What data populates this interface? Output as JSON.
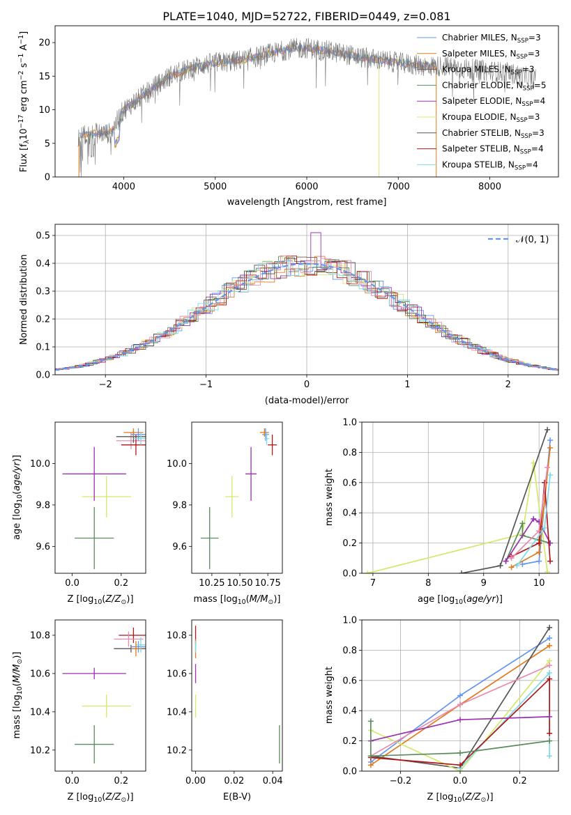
{
  "title": "PLATE=1040, MJD=52722, FIBERID=0449, z=0.081",
  "colors": {
    "Chabrier MILES": "#6495ed",
    "Salpeter MILES": "#e07b1a",
    "Kroupa MILES": "#7a5a3c",
    "Chabrier ELODIE": "#5a8a5a",
    "Salpeter ELODIE": "#9b30b0",
    "Kroupa ELODIE": "#d4e86a",
    "Chabrier STELIB": "#555555",
    "Salpeter STELIB": "#b01515",
    "Kroupa STELIB": "#7fd8e8",
    "pink": "#e88ab0"
  },
  "chart_data": [
    {
      "type": "line",
      "title": "PLATE=1040, MJD=52722, FIBERID=0449, z=0.081",
      "xlabel": "wavelength [Angstrom, rest frame]",
      "ylabel": "Flux [f_λ10^-17 erg cm^-2 s^-1 A^-1]",
      "xlim": [
        3250,
        8750
      ],
      "ylim": [
        0,
        22.5
      ],
      "xticks": [
        "4000",
        "5000",
        "6000",
        "7000",
        "8000"
      ],
      "yticks": [
        "0",
        "5",
        "10",
        "15",
        "20"
      ],
      "legend_position": "top-right",
      "legend": [
        {
          "base": "Chabrier MILES, N",
          "sub": "SSP",
          "tail": "=3"
        },
        {
          "base": "Salpeter MILES, N",
          "sub": "SSP",
          "tail": "=3"
        },
        {
          "base": "Kroupa MILES, N",
          "sub": "SSP",
          "tail": "=3"
        },
        {
          "base": "Chabrier ELODIE, N",
          "sub": "SSP",
          "tail": "=5"
        },
        {
          "base": "Salpeter ELODIE, N",
          "sub": "SSP",
          "tail": "=4"
        },
        {
          "base": "Kroupa ELODIE, N",
          "sub": "SSP",
          "tail": "=3"
        },
        {
          "base": "Chabrier STELIB, N",
          "sub": "SSP",
          "tail": "=3"
        },
        {
          "base": "Salpeter STELIB, N",
          "sub": "SSP",
          "tail": "=4"
        },
        {
          "base": "Kroupa STELIB, N",
          "sub": "SSP",
          "tail": "=4"
        }
      ],
      "continuum": [
        [
          3500,
          6
        ],
        [
          3700,
          6.5
        ],
        [
          3850,
          6.5
        ],
        [
          4000,
          10
        ],
        [
          4200,
          12
        ],
        [
          4500,
          15
        ],
        [
          4800,
          16.5
        ],
        [
          5000,
          17
        ],
        [
          5200,
          17.2
        ],
        [
          5500,
          18
        ],
        [
          5800,
          19
        ],
        [
          6000,
          19.2
        ],
        [
          6300,
          18.6
        ],
        [
          6600,
          17.8
        ],
        [
          7000,
          17
        ],
        [
          7300,
          16.5
        ],
        [
          7500,
          16.5
        ],
        [
          7800,
          16
        ],
        [
          8200,
          15.5
        ],
        [
          8500,
          14.5
        ]
      ]
    },
    {
      "type": "bar",
      "xlabel": "(data-model)/error",
      "ylabel": "Normed distribution",
      "xlim": [
        -2.5,
        2.5
      ],
      "ylim": [
        0,
        0.54
      ],
      "xticks": [
        "−2",
        "−1",
        "0",
        "1",
        "2"
      ],
      "yticks": [
        "0.0",
        "0.1",
        "0.2",
        "0.3",
        "0.4",
        "0.5"
      ],
      "legend_position": "top-right",
      "legend": "𝒩(0, 1)",
      "grid": true
    },
    {
      "type": "scatter",
      "xlabel": "Z [log10(Z/Z⊙)]",
      "ylabel": "age [log10(age/yr)]",
      "xlim": [
        -0.07,
        0.3
      ],
      "ylim": [
        9.47,
        10.2
      ],
      "xticks": [
        "0.0",
        "0.2"
      ],
      "yticks": [
        "9.6",
        "9.8",
        "10.0"
      ],
      "points": [
        {
          "model": "Chabrier ELODIE",
          "x": 0.09,
          "y": 9.64,
          "xerr": 0.08,
          "yerr": 0.15
        },
        {
          "model": "Kroupa ELODIE",
          "x": 0.14,
          "y": 9.84,
          "xerr": 0.1,
          "yerr": 0.1
        },
        {
          "model": "Salpeter ELODIE",
          "x": 0.09,
          "y": 9.95,
          "xerr": 0.13,
          "yerr": 0.13
        },
        {
          "model": "pink",
          "x": 0.24,
          "y": 10.11,
          "xerr": 0.06,
          "yerr": 0.04
        },
        {
          "model": "Salpeter STELIB",
          "x": 0.26,
          "y": 10.09,
          "xerr": 0.06,
          "yerr": 0.05
        },
        {
          "model": "Chabrier STELIB",
          "x": 0.25,
          "y": 10.13,
          "xerr": 0.07,
          "yerr": 0.03
        },
        {
          "model": "Salpeter MILES",
          "x": 0.25,
          "y": 10.15,
          "xerr": 0.04,
          "yerr": 0.02
        },
        {
          "model": "Chabrier MILES",
          "x": 0.27,
          "y": 10.14,
          "xerr": 0.03,
          "yerr": 0.03
        },
        {
          "model": "Kroupa STELIB",
          "x": 0.28,
          "y": 10.12,
          "xerr": 0.03,
          "yerr": 0.03
        }
      ]
    },
    {
      "type": "scatter",
      "xlabel": "mass [log10(M/M⊙)]",
      "ylabel": "",
      "xlim": [
        10.07,
        10.88
      ],
      "ylim": [
        9.47,
        10.2
      ],
      "xticks": [
        "10.25",
        "10.50",
        "10.75"
      ],
      "yticks": [
        "9.6",
        "9.8",
        "10.0"
      ],
      "points": [
        {
          "model": "Chabrier ELODIE",
          "x": 10.23,
          "y": 9.64,
          "xerr": 0.08,
          "yerr": 0.15
        },
        {
          "model": "Kroupa ELODIE",
          "x": 10.43,
          "y": 9.84,
          "xerr": 0.06,
          "yerr": 0.1
        },
        {
          "model": "Salpeter ELODIE",
          "x": 10.6,
          "y": 9.95,
          "xerr": 0.05,
          "yerr": 0.13
        },
        {
          "model": "Salpeter STELIB",
          "x": 10.79,
          "y": 10.09,
          "xerr": 0.04,
          "yerr": 0.05
        },
        {
          "model": "Chabrier MILES",
          "x": 10.73,
          "y": 10.14,
          "xerr": 0.03,
          "yerr": 0.03
        },
        {
          "model": "Salpeter MILES",
          "x": 10.72,
          "y": 10.15,
          "xerr": 0.04,
          "yerr": 0.02
        },
        {
          "model": "Kroupa STELIB",
          "x": 10.74,
          "y": 10.12,
          "xerr": 0.02,
          "yerr": 0.03
        }
      ]
    },
    {
      "type": "line",
      "xlabel": "age [log10(age/yr)]",
      "ylabel": "mass weight",
      "xlim": [
        6.8,
        10.35
      ],
      "ylim": [
        0,
        1
      ],
      "xticks": [
        "7",
        "8",
        "9",
        "10"
      ],
      "yticks": [
        "0.0",
        "0.2",
        "0.4",
        "0.6",
        "0.8",
        "1.0"
      ],
      "grid": true,
      "series": [
        {
          "model": "Kroupa ELODIE",
          "x": [
            6.9,
            9.7,
            9.9,
            10.15
          ],
          "y": [
            0.0,
            0.26,
            0.73,
            0.01
          ]
        },
        {
          "model": "Chabrier STELIB",
          "x": [
            8.6,
            9.3,
            10.15
          ],
          "y": [
            0.0,
            0.05,
            0.95
          ]
        },
        {
          "model": "Chabrier MILES",
          "x": [
            9.7,
            10.0,
            10.2
          ],
          "y": [
            0.06,
            0.08,
            0.88
          ]
        },
        {
          "model": "Salpeter MILES",
          "x": [
            9.5,
            10.0,
            10.2
          ],
          "y": [
            0.04,
            0.14,
            0.83
          ]
        },
        {
          "model": "Chabrier ELODIE",
          "x": [
            9.4,
            9.7,
            9.7,
            10.0,
            10.2
          ],
          "y": [
            0.08,
            0.33,
            0.25,
            0.22,
            0.2
          ]
        },
        {
          "model": "Salpeter ELODIE",
          "x": [
            9.4,
            9.9,
            10.0,
            10.2
          ],
          "y": [
            0.08,
            0.36,
            0.34,
            0.2
          ]
        },
        {
          "model": "Salpeter STELIB",
          "x": [
            9.5,
            10.0,
            10.1,
            10.2
          ],
          "y": [
            0.11,
            0.2,
            0.6,
            0.08
          ]
        },
        {
          "model": "pink",
          "x": [
            9.5,
            10.0,
            10.15
          ],
          "y": [
            0.1,
            0.28,
            0.7
          ]
        },
        {
          "model": "Kroupa STELIB",
          "x": [
            9.6,
            10.1,
            10.2
          ],
          "y": [
            0.05,
            0.3,
            0.65
          ]
        }
      ]
    },
    {
      "type": "scatter",
      "xlabel": "Z [log10(Z/Z⊙)]",
      "ylabel": "mass [log10(M/M⊙)]",
      "xlim": [
        -0.07,
        0.3
      ],
      "ylim": [
        10.09,
        10.88
      ],
      "xticks": [
        "0.0",
        "0.2"
      ],
      "yticks": [
        "10.2",
        "10.4",
        "10.6",
        "10.8"
      ],
      "points": [
        {
          "model": "Chabrier ELODIE",
          "x": 0.09,
          "y": 10.23,
          "xerr": 0.08,
          "yerr": 0.1
        },
        {
          "model": "Kroupa ELODIE",
          "x": 0.14,
          "y": 10.43,
          "xerr": 0.1,
          "yerr": 0.06
        },
        {
          "model": "Salpeter ELODIE",
          "x": 0.09,
          "y": 10.6,
          "xerr": 0.13,
          "yerr": 0.03
        },
        {
          "model": "Salpeter STELIB",
          "x": 0.25,
          "y": 10.8,
          "xerr": 0.06,
          "yerr": 0.04
        },
        {
          "model": "pink",
          "x": 0.23,
          "y": 10.78,
          "xerr": 0.06,
          "yerr": 0.04
        },
        {
          "model": "Chabrier STELIB",
          "x": 0.24,
          "y": 10.73,
          "xerr": 0.07,
          "yerr": 0.02
        },
        {
          "model": "Chabrier MILES",
          "x": 0.27,
          "y": 10.74,
          "xerr": 0.03,
          "yerr": 0.03
        },
        {
          "model": "Kroupa STELIB",
          "x": 0.28,
          "y": 10.75,
          "xerr": 0.02,
          "yerr": 0.04
        },
        {
          "model": "Salpeter MILES",
          "x": 0.26,
          "y": 10.73,
          "xerr": 0.02,
          "yerr": 0.04
        }
      ]
    },
    {
      "type": "scatter",
      "xlabel": "E(B-V)",
      "ylabel": "",
      "xlim": [
        -0.002,
        0.045
      ],
      "ylim": [
        10.09,
        10.88
      ],
      "xticks": [
        "0.00",
        "0.02",
        "0.04"
      ],
      "yticks": [
        "10.2",
        "10.4",
        "10.6",
        "10.8"
      ],
      "points": [
        {
          "model": "Salpeter STELIB",
          "x": 0.0,
          "y": 10.8,
          "yerr": 0.05
        },
        {
          "model": "Salpeter MILES",
          "x": 0.0,
          "y": 10.73,
          "yerr": 0.05
        },
        {
          "model": "Salpeter ELODIE",
          "x": 0.0,
          "y": 10.6,
          "yerr": 0.05
        },
        {
          "model": "Kroupa ELODIE",
          "x": 0.0,
          "y": 10.43,
          "yerr": 0.06
        },
        {
          "model": "Kroupa STELIB",
          "x": 0.0,
          "y": 10.74,
          "yerr": 0.03
        },
        {
          "model": "Chabrier ELODIE",
          "x": 0.0435,
          "y": 10.23,
          "yerr": 0.1
        }
      ]
    },
    {
      "type": "line",
      "xlabel": "Z [log10(Z/Z⊙)]",
      "ylabel": "mass weight",
      "xlim": [
        -0.33,
        0.33
      ],
      "ylim": [
        0,
        1
      ],
      "xticks": [
        "−0.2",
        "0.0",
        "0.2"
      ],
      "yticks": [
        "0.0",
        "0.2",
        "0.4",
        "0.6",
        "0.8",
        "1.0"
      ],
      "grid": true,
      "series": [
        {
          "model": "Chabrier MILES",
          "x": [
            -0.3,
            0.0,
            0.3
          ],
          "y": [
            0.06,
            0.5,
            0.88
          ]
        },
        {
          "model": "Salpeter MILES",
          "x": [
            -0.3,
            0.0,
            0.3
          ],
          "y": [
            0.04,
            0.44,
            0.83
          ]
        },
        {
          "model": "Chabrier STELIB",
          "x": [
            -0.3,
            0.0,
            0.3
          ],
          "y": [
            0.1,
            0.02,
            0.95
          ]
        },
        {
          "model": "Kroupa ELODIE",
          "x": [
            -0.3,
            0.0,
            0.3
          ],
          "y": [
            0.27,
            0.0,
            0.73
          ]
        },
        {
          "model": "pink",
          "x": [
            -0.3,
            0.0,
            0.3
          ],
          "y": [
            0.1,
            0.44,
            0.7
          ]
        },
        {
          "model": "Kroupa STELIB",
          "x": [
            0.0,
            0.3,
            0.3
          ],
          "y": [
            0.02,
            0.65,
            0.1
          ]
        },
        {
          "model": "Salpeter STELIB",
          "x": [
            -0.3,
            0.0,
            0.3,
            0.3
          ],
          "y": [
            0.09,
            0.04,
            0.61,
            0.25
          ]
        },
        {
          "model": "Salpeter ELODIE",
          "x": [
            -0.3,
            0.0,
            0.3
          ],
          "y": [
            0.2,
            0.34,
            0.36
          ]
        },
        {
          "model": "Chabrier ELODIE",
          "x": [
            -0.3,
            -0.3,
            0.0,
            0.3
          ],
          "y": [
            0.33,
            0.1,
            0.12,
            0.2
          ]
        }
      ]
    }
  ]
}
